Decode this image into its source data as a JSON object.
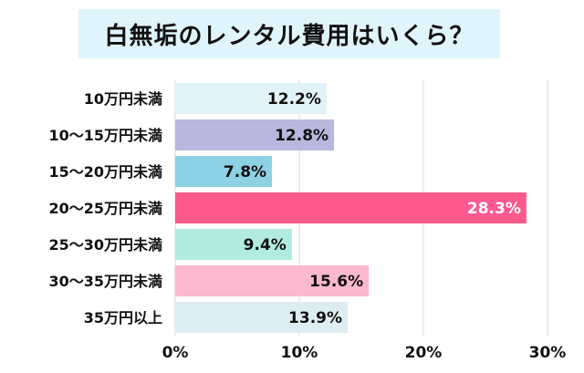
{
  "title": "白無垢のレンタル費用はいくら？",
  "chart_data": {
    "type": "bar",
    "orientation": "horizontal",
    "title": "白無垢のレンタル費用はいくら？",
    "categories": [
      "10万円未満",
      "10〜15万円未満",
      "15〜20万円未満",
      "20〜25万円未満",
      "25〜30万円未満",
      "30〜35万円未満",
      "35万円以上"
    ],
    "values": [
      12.2,
      12.8,
      7.8,
      28.3,
      9.4,
      15.6,
      13.9
    ],
    "value_labels": [
      "12.2%",
      "12.8%",
      "7.8%",
      "28.3%",
      "9.4%",
      "15.6%",
      "13.9%"
    ],
    "colors": [
      "#e1f3f9",
      "#b9b7dd",
      "#8dd1e5",
      "#fc5a8e",
      "#b2ece0",
      "#fbb8cf",
      "#ddeef2"
    ],
    "label_colors": [
      "#111111",
      "#111111",
      "#111111",
      "#ffffff",
      "#111111",
      "#111111",
      "#111111"
    ],
    "xlim": [
      0,
      30
    ],
    "x_ticks": [
      0,
      10,
      20,
      30
    ],
    "x_tick_labels": [
      "0%",
      "10%",
      "20%",
      "30%"
    ],
    "grid": "vertical",
    "grid_color": "#d9d9d9"
  }
}
